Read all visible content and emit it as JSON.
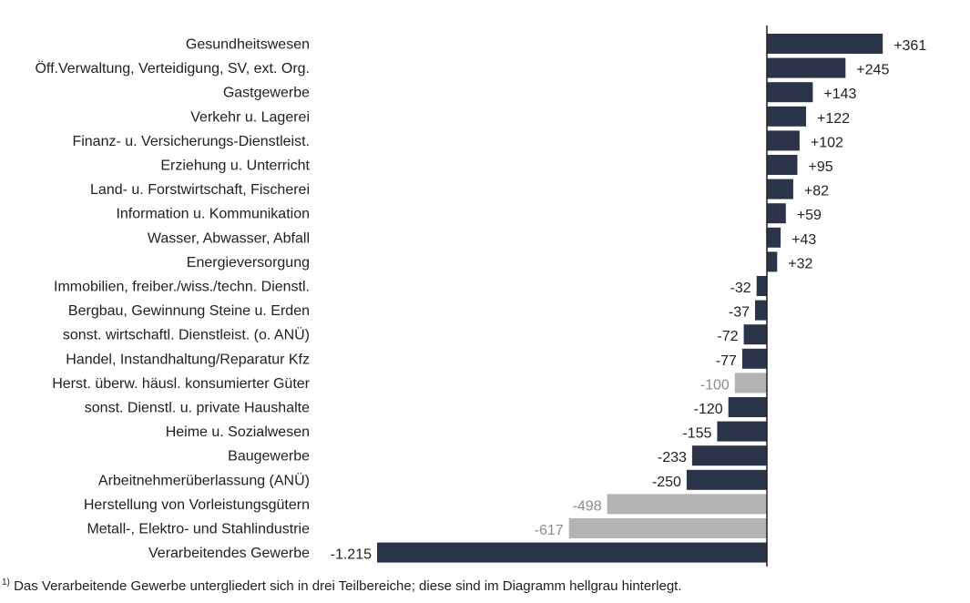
{
  "chart_data": {
    "type": "bar",
    "orientation": "horizontal",
    "categories": [
      "Gesundheitswesen",
      "Öff.Verwaltung, Verteidigung, SV, ext. Org.",
      "Gastgewerbe",
      "Verkehr u. Lagerei",
      "Finanz- u. Versicherungs-Dienstleist.",
      "Erziehung u. Unterricht",
      "Land- u. Forstwirtschaft, Fischerei",
      "Information u. Kommunikation",
      "Wasser, Abwasser, Abfall",
      "Energieversorgung",
      "Immobilien, freiber./wiss./techn. Dienstl.",
      "Bergbau, Gewinnung Steine u. Erden",
      "sonst. wirtschaftl. Dienstleist. (o. ANÜ)",
      "Handel, Instandhaltung/Reparatur Kfz",
      "Herst. überw. häusl. konsumierter Güter",
      "sonst. Dienstl. u. private Haushalte",
      "Heime u. Sozialwesen",
      "Baugewerbe",
      "Arbeitnehmerüberlassung (ANÜ)",
      "Herstellung von Vorleistungsgütern",
      "Metall-, Elektro- und Stahlindustrie",
      "Verarbeitendes Gewerbe"
    ],
    "values": [
      361,
      245,
      143,
      122,
      102,
      95,
      82,
      59,
      43,
      32,
      -32,
      -37,
      -72,
      -77,
      -100,
      -120,
      -155,
      -233,
      -250,
      -498,
      -617,
      -1215
    ],
    "value_labels": [
      "+361",
      "+245",
      "+143",
      "+122",
      "+102",
      "+95",
      "+82",
      "+59",
      "+43",
      "+32",
      "-32",
      "-37",
      "-72",
      "-77",
      "-100",
      "-120",
      "-155",
      "-233",
      "-250",
      "-498",
      "-617",
      "-1.215"
    ],
    "subsector": [
      false,
      false,
      false,
      false,
      false,
      false,
      false,
      false,
      false,
      false,
      false,
      false,
      false,
      false,
      true,
      false,
      false,
      false,
      false,
      true,
      true,
      false
    ],
    "colors": {
      "main": "#2b3449",
      "subsector": "#b3b3b3",
      "axis": "#1f1f1f"
    },
    "title": "",
    "xlabel": "",
    "ylabel": ""
  },
  "footnote": {
    "marker": "1)",
    "text": " Das Verarbeitende Gewerbe  untergliedert sich in drei  Teilbereiche; diese sind im Diagramm hellgrau hinterlegt."
  }
}
